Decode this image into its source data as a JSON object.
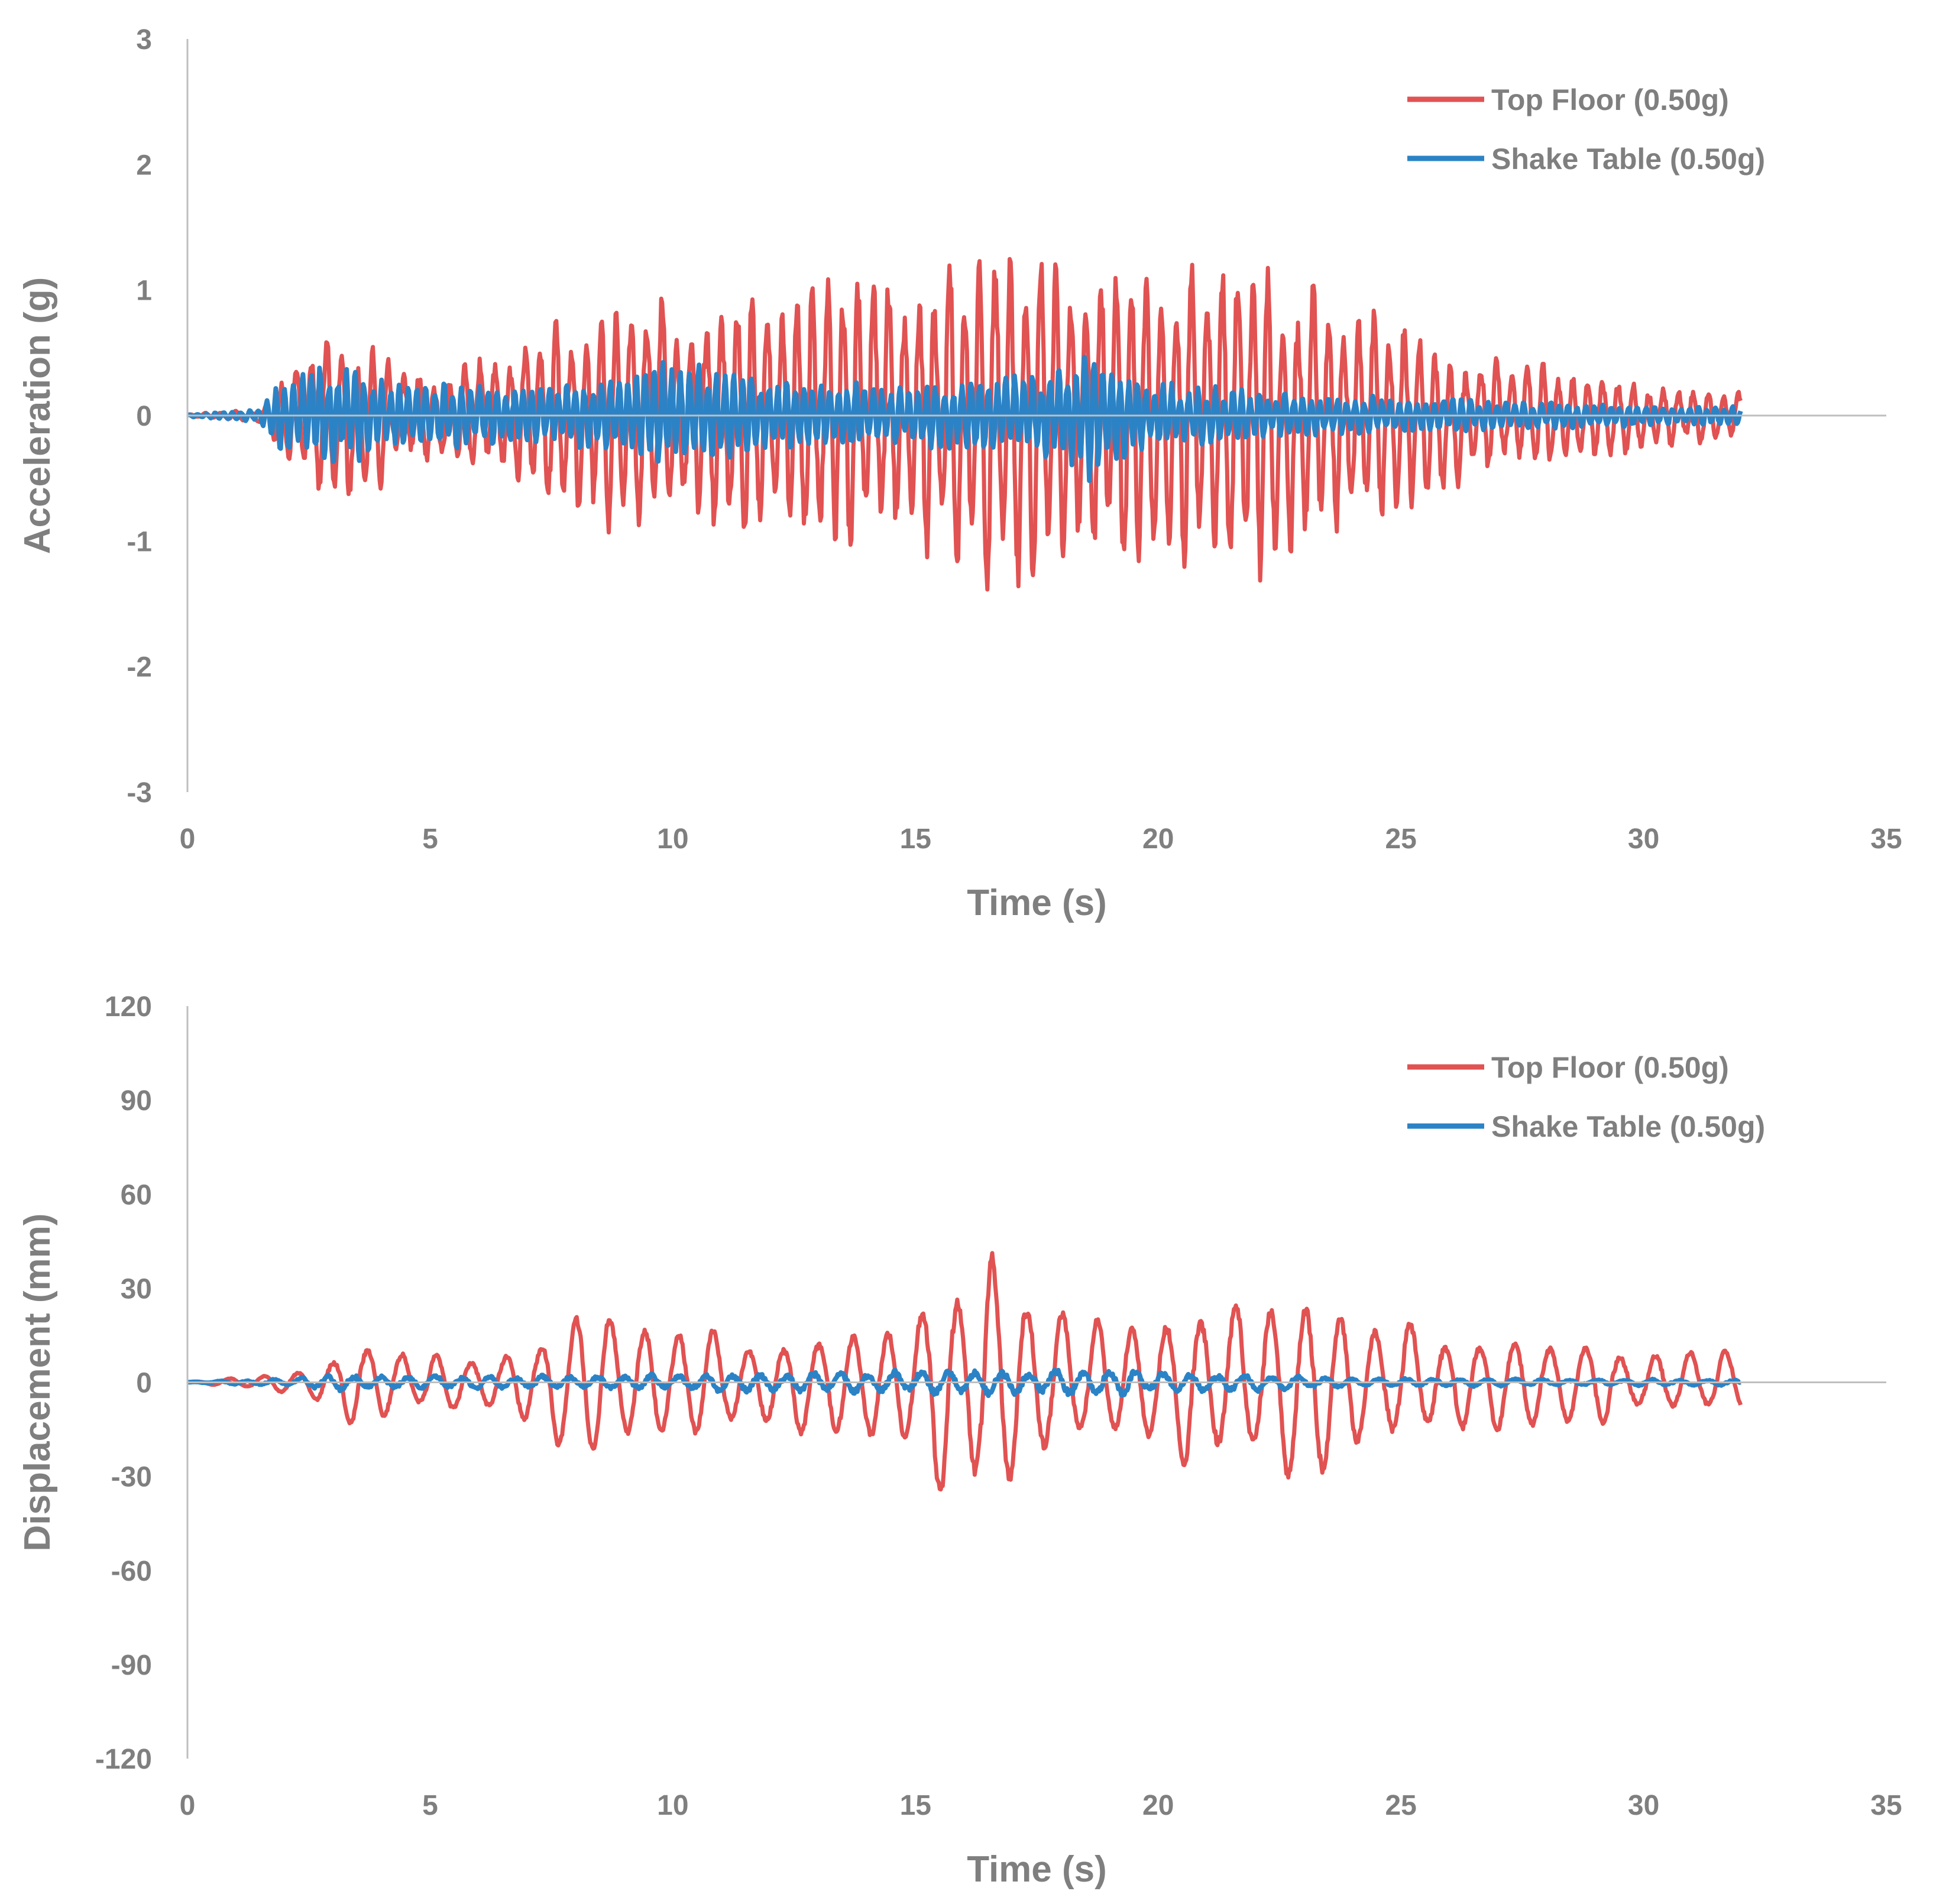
{
  "colors": {
    "top_floor": "#e15252",
    "shake_table": "#2b83c6",
    "axis": "#bfbfbf",
    "text": "#7f7f7f"
  },
  "chart_data": [
    {
      "type": "line",
      "title": "",
      "xlabel": "Time (s)",
      "ylabel": "Acceleration (g)",
      "xlim": [
        0,
        35
      ],
      "ylim": [
        -3,
        3
      ],
      "xticks": [
        0,
        5,
        10,
        15,
        20,
        25,
        30,
        35
      ],
      "yticks": [
        -3,
        -2,
        -1,
        0,
        1,
        2,
        3
      ],
      "xtick_labels": [
        "0",
        "5",
        "10",
        "15",
        "20",
        "25",
        "30",
        "35"
      ],
      "ytick_labels": [
        "-3",
        "-2",
        "-1",
        "0",
        "1",
        "2",
        "3"
      ],
      "legend_position": "top-right",
      "series": [
        {
          "name": "Top Floor (0.50g)",
          "color_key": "top_floor",
          "signal": {
            "t_start": 0,
            "t_end": 32,
            "dt": 0.02,
            "freq_hz": 3.2,
            "seed": 11,
            "envelope": [
              [
                0,
                0.01
              ],
              [
                1.5,
                0.05
              ],
              [
                2.0,
                0.3
              ],
              [
                3.0,
                0.7
              ],
              [
                4.0,
                0.55
              ],
              [
                5.0,
                0.35
              ],
              [
                6.5,
                0.5
              ],
              [
                8.0,
                0.8
              ],
              [
                9.0,
                0.95
              ],
              [
                10.0,
                1.0
              ],
              [
                12.0,
                0.9
              ],
              [
                14.0,
                1.15
              ],
              [
                15.5,
                1.3
              ],
              [
                16.3,
                1.38
              ],
              [
                18.0,
                1.22
              ],
              [
                19.0,
                1.2
              ],
              [
                20.5,
                1.18
              ],
              [
                22.3,
                1.22
              ],
              [
                23.5,
                1.0
              ],
              [
                25.0,
                0.7
              ],
              [
                27.0,
                0.45
              ],
              [
                29.0,
                0.32
              ],
              [
                31.0,
                0.24
              ],
              [
                32.0,
                0.18
              ]
            ]
          }
        },
        {
          "name": "Shake Table (0.50g)",
          "color_key": "shake_table",
          "signal": {
            "t_start": 0,
            "t_end": 32,
            "dt": 0.02,
            "freq_hz": 5.5,
            "seed": 29,
            "envelope": [
              [
                0,
                0.01
              ],
              [
                1.5,
                0.05
              ],
              [
                2.0,
                0.3
              ],
              [
                3.0,
                0.42
              ],
              [
                4.0,
                0.3
              ],
              [
                6.0,
                0.22
              ],
              [
                9.0,
                0.3
              ],
              [
                10.0,
                0.45
              ],
              [
                12.0,
                0.28
              ],
              [
                15.0,
                0.25
              ],
              [
                18.0,
                0.35
              ],
              [
                18.5,
                0.5
              ],
              [
                20.0,
                0.25
              ],
              [
                24.0,
                0.15
              ],
              [
                28.0,
                0.1
              ],
              [
                32.0,
                0.07
              ]
            ]
          }
        }
      ]
    },
    {
      "type": "line",
      "title": "",
      "xlabel": "Time (s)",
      "ylabel": "Displacement (mm)",
      "xlim": [
        0,
        35
      ],
      "ylim": [
        -120,
        120
      ],
      "xticks": [
        0,
        5,
        10,
        15,
        20,
        25,
        30,
        35
      ],
      "yticks": [
        -120,
        -90,
        -60,
        -30,
        0,
        30,
        60,
        90,
        120
      ],
      "xtick_labels": [
        "0",
        "5",
        "10",
        "15",
        "20",
        "25",
        "30",
        "35"
      ],
      "ytick_labels": [
        "-120",
        "-90",
        "-60",
        "-30",
        "0",
        "30",
        "60",
        "90",
        "120"
      ],
      "legend_position": "top-right",
      "series": [
        {
          "name": "Top Floor (0.50g)",
          "color_key": "top_floor",
          "signal": {
            "t_start": 0,
            "t_end": 32,
            "dt": 0.02,
            "freq_hz": 1.4,
            "seed": 7,
            "noise": 0.1,
            "envelope": [
              [
                0,
                0.2
              ],
              [
                1.5,
                2
              ],
              [
                2.5,
                5
              ],
              [
                3.3,
                14
              ],
              [
                4.5,
                12
              ],
              [
                5.5,
                8
              ],
              [
                6.5,
                10
              ],
              [
                7.5,
                20
              ],
              [
                8.3,
                25
              ],
              [
                9.0,
                20
              ],
              [
                10.0,
                18
              ],
              [
                11.0,
                17
              ],
              [
                12.0,
                16
              ],
              [
                13.0,
                16
              ],
              [
                14.0,
                18
              ],
              [
                15.0,
                30
              ],
              [
                15.6,
                38
              ],
              [
                16.3,
                42
              ],
              [
                17.0,
                40
              ],
              [
                17.5,
                30
              ],
              [
                18.0,
                22
              ],
              [
                18.5,
                20
              ],
              [
                19.5,
                20
              ],
              [
                20.5,
                27
              ],
              [
                21.3,
                31
              ],
              [
                22.0,
                32
              ],
              [
                22.8,
                33
              ],
              [
                23.5,
                30
              ],
              [
                24.5,
                24
              ],
              [
                25.5,
                20
              ],
              [
                26.5,
                18
              ],
              [
                27.5,
                16
              ],
              [
                28.5,
                14
              ],
              [
                29.5,
                13
              ],
              [
                30.5,
                12
              ],
              [
                31.5,
                11
              ],
              [
                32.0,
                10
              ]
            ]
          }
        },
        {
          "name": "Shake Table (0.50g)",
          "color_key": "shake_table",
          "signal": {
            "t_start": 0,
            "t_end": 32,
            "dt": 0.02,
            "freq_hz": 1.8,
            "seed": 3,
            "noise": 0.5,
            "envelope": [
              [
                0,
                0.1
              ],
              [
                2.0,
                1.0
              ],
              [
                3.0,
                2.5
              ],
              [
                4.0,
                2.5
              ],
              [
                6.0,
                2.0
              ],
              [
                8.0,
                2.0
              ],
              [
                10.0,
                2.5
              ],
              [
                12.0,
                3.0
              ],
              [
                14.0,
                3.0
              ],
              [
                15.0,
                3.5
              ],
              [
                18.0,
                4.0
              ],
              [
                21.0,
                3.0
              ],
              [
                24.0,
                1.5
              ],
              [
                28.0,
                1.0
              ],
              [
                32.0,
                1.0
              ]
            ]
          }
        }
      ]
    }
  ]
}
